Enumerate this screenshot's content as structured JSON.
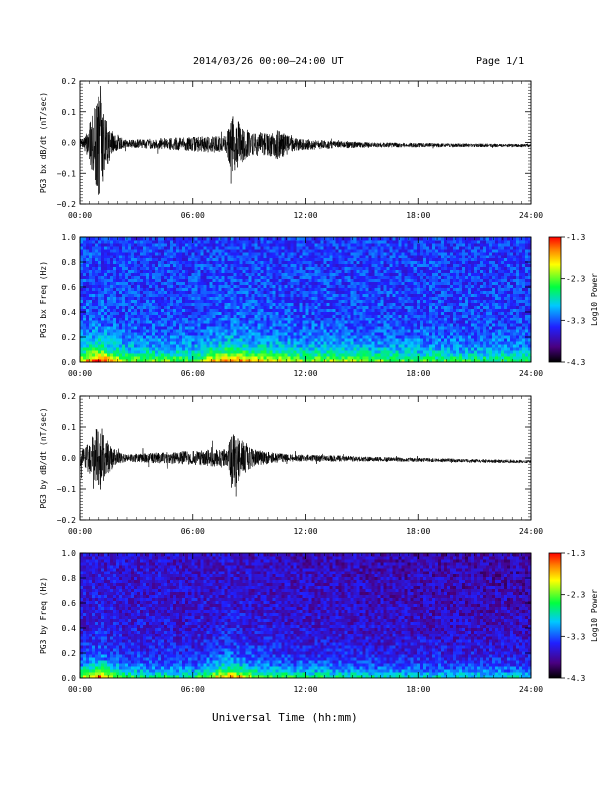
{
  "header": {
    "title": "2014/03/26  00:00–24:00 UT",
    "page": "Page 1/1"
  },
  "footer": {
    "xlabel": "Universal Time (hh:mm)"
  },
  "colors": {
    "axis": "#000000",
    "trace": "#000000",
    "background": "#ffffff"
  },
  "chart_data": [
    {
      "type": "line",
      "name": "bx-dbdt",
      "ylabel": "PG3 bx dB/dt (nT/sec)",
      "xlim": [
        "00:00",
        "24:00"
      ],
      "ylim": [
        -0.2,
        0.2
      ],
      "x_ticks": [
        "00:00",
        "06:00",
        "12:00",
        "18:00",
        "24:00"
      ],
      "y_ticks": [
        "0.2",
        "0.1",
        "0.0",
        "−0.1",
        "−0.2"
      ],
      "baseline_trend": [
        [
          0,
          -0.003
        ],
        [
          12,
          -0.007
        ],
        [
          24,
          -0.01
        ]
      ],
      "activity_hours": [
        [
          0.2,
          0.015
        ],
        [
          0.5,
          0.06
        ],
        [
          0.8,
          0.12
        ],
        [
          1.1,
          0.2
        ],
        [
          1.4,
          0.08
        ],
        [
          1.8,
          0.03
        ],
        [
          2.5,
          0.012
        ],
        [
          7.8,
          0.03
        ],
        [
          8.1,
          0.1
        ],
        [
          8.5,
          0.07
        ],
        [
          9.0,
          0.04
        ],
        [
          10.0,
          0.035
        ],
        [
          10.5,
          0.05
        ],
        [
          11.5,
          0.02
        ],
        [
          13.5,
          0.012
        ],
        [
          16.0,
          0.008
        ],
        [
          20.0,
          0.006
        ],
        [
          24.0,
          0.005
        ]
      ]
    },
    {
      "type": "heatmap",
      "name": "bx-spectrogram",
      "ylabel": "PG3 bx Freq (Hz)",
      "xlim": [
        "00:00",
        "24:00"
      ],
      "ylim": [
        0,
        1.0
      ],
      "x_ticks": [
        "00:00",
        "06:00",
        "12:00",
        "18:00",
        "24:00"
      ],
      "y_ticks": [
        "1.0",
        "0.8",
        "0.6",
        "0.4",
        "0.2",
        "0.0"
      ],
      "colorbar": {
        "label": "Log10 Power",
        "range": [
          -4.3,
          -1.3
        ],
        "ticks": [
          "-1.3",
          "-2.3",
          "-3.3",
          "-4.3"
        ]
      },
      "enhancement_hours": [
        [
          0.0,
          0.45
        ],
        [
          1.0,
          1.0
        ],
        [
          1.5,
          0.7
        ],
        [
          2.5,
          0.35
        ],
        [
          6.0,
          0.25
        ],
        [
          8.0,
          0.85
        ],
        [
          9.0,
          0.6
        ],
        [
          10.5,
          0.5
        ],
        [
          12.0,
          0.35
        ],
        [
          14.0,
          0.35
        ],
        [
          17.0,
          0.25
        ],
        [
          20.0,
          0.18
        ],
        [
          24.0,
          0.12
        ]
      ]
    },
    {
      "type": "line",
      "name": "by-dbdt",
      "ylabel": "PG3 by dB/dt (nT/sec)",
      "xlim": [
        "00:00",
        "24:00"
      ],
      "ylim": [
        -0.2,
        0.2
      ],
      "x_ticks": [
        "00:00",
        "06:00",
        "12:00",
        "18:00",
        "24:00"
      ],
      "y_ticks": [
        "0.2",
        "0.1",
        "0.0",
        "−0.1",
        "−0.2"
      ],
      "baseline_trend": [
        [
          0,
          0.0
        ],
        [
          12,
          0.0
        ],
        [
          24,
          -0.012
        ]
      ],
      "activity_hours": [
        [
          0.2,
          0.03
        ],
        [
          0.6,
          0.06
        ],
        [
          1.0,
          0.13
        ],
        [
          1.3,
          0.07
        ],
        [
          1.8,
          0.03
        ],
        [
          2.5,
          0.012
        ],
        [
          7.8,
          0.03
        ],
        [
          8.2,
          0.1
        ],
        [
          8.6,
          0.06
        ],
        [
          9.2,
          0.03
        ],
        [
          10.0,
          0.02
        ],
        [
          11.0,
          0.012
        ],
        [
          13.5,
          0.01
        ],
        [
          16.0,
          0.007
        ],
        [
          24.0,
          0.005
        ]
      ]
    },
    {
      "type": "heatmap",
      "name": "by-spectrogram",
      "ylabel": "PG3 by Freq (Hz)",
      "xlim": [
        "00:00",
        "24:00"
      ],
      "ylim": [
        0,
        1.0
      ],
      "x_ticks": [
        "00:00",
        "06:00",
        "12:00",
        "18:00",
        "24:00"
      ],
      "y_ticks": [
        "1.0",
        "0.8",
        "0.6",
        "0.4",
        "0.2",
        "0.0"
      ],
      "colorbar": {
        "label": "Log10 Power",
        "range": [
          -4.3,
          -1.3
        ],
        "ticks": [
          "-1.3",
          "-2.3",
          "-3.3",
          "-4.3"
        ]
      },
      "enhancement_hours": [
        [
          0.0,
          0.4
        ],
        [
          1.0,
          1.0
        ],
        [
          1.5,
          0.6
        ],
        [
          2.5,
          0.3
        ],
        [
          6.0,
          0.2
        ],
        [
          8.0,
          0.9
        ],
        [
          9.0,
          0.5
        ],
        [
          11.0,
          0.3
        ],
        [
          13.0,
          0.25
        ],
        [
          15.0,
          0.15
        ],
        [
          18.0,
          0.1
        ],
        [
          24.0,
          0.05
        ]
      ]
    }
  ]
}
